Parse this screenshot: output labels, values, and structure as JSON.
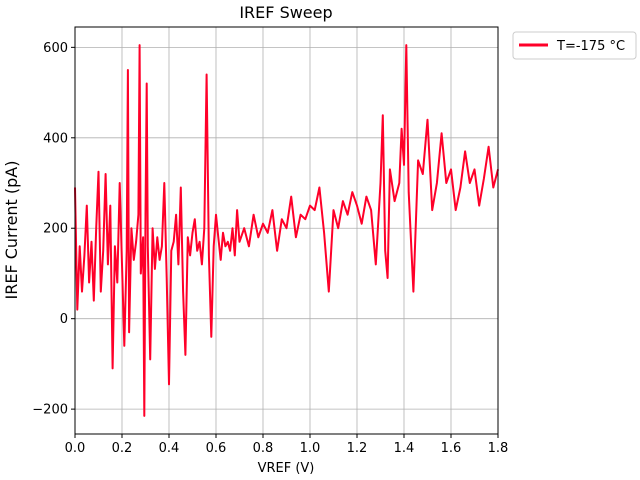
{
  "chart_data": {
    "type": "line",
    "title": "IREF Sweep",
    "xlabel": "VREF (V)",
    "ylabel": "IREF Current (pA)",
    "xlim": [
      0.0,
      1.8
    ],
    "ylim": [
      -255,
      645
    ],
    "xticks": [
      "0.0",
      "0.2",
      "0.4",
      "0.6",
      "0.8",
      "1.0",
      "1.2",
      "1.4",
      "1.6",
      "1.8"
    ],
    "xtick_values": [
      0.0,
      0.2,
      0.4,
      0.6,
      0.8,
      1.0,
      1.2,
      1.4,
      1.6,
      1.8
    ],
    "yticks": [
      "−200",
      "0",
      "200",
      "400",
      "600"
    ],
    "ytick_values": [
      -200,
      0,
      200,
      400,
      600
    ],
    "grid": true,
    "legend_position": "outside-top-right",
    "series": [
      {
        "name": "T=-175 °C",
        "color": "#ff0029",
        "x": [
          0.0,
          0.01,
          0.02,
          0.03,
          0.04,
          0.05,
          0.06,
          0.07,
          0.08,
          0.09,
          0.1,
          0.11,
          0.12,
          0.13,
          0.14,
          0.15,
          0.16,
          0.17,
          0.18,
          0.19,
          0.2,
          0.21,
          0.22,
          0.225,
          0.23,
          0.24,
          0.25,
          0.26,
          0.27,
          0.275,
          0.28,
          0.29,
          0.295,
          0.3,
          0.305,
          0.31,
          0.32,
          0.33,
          0.34,
          0.35,
          0.36,
          0.37,
          0.38,
          0.39,
          0.4,
          0.41,
          0.42,
          0.43,
          0.44,
          0.45,
          0.46,
          0.47,
          0.48,
          0.49,
          0.5,
          0.51,
          0.52,
          0.53,
          0.54,
          0.55,
          0.56,
          0.57,
          0.58,
          0.59,
          0.6,
          0.61,
          0.62,
          0.63,
          0.64,
          0.65,
          0.66,
          0.67,
          0.68,
          0.69,
          0.7,
          0.72,
          0.74,
          0.76,
          0.78,
          0.8,
          0.82,
          0.84,
          0.86,
          0.88,
          0.9,
          0.92,
          0.94,
          0.96,
          0.98,
          1.0,
          1.02,
          1.04,
          1.06,
          1.08,
          1.1,
          1.12,
          1.14,
          1.16,
          1.18,
          1.2,
          1.22,
          1.24,
          1.26,
          1.28,
          1.3,
          1.31,
          1.32,
          1.33,
          1.34,
          1.36,
          1.38,
          1.39,
          1.4,
          1.41,
          1.42,
          1.44,
          1.46,
          1.48,
          1.5,
          1.52,
          1.54,
          1.56,
          1.58,
          1.6,
          1.62,
          1.64,
          1.66,
          1.68,
          1.7,
          1.72,
          1.74,
          1.76,
          1.78,
          1.8
        ],
        "values": [
          290,
          20,
          160,
          60,
          140,
          250,
          80,
          170,
          40,
          200,
          325,
          60,
          150,
          320,
          120,
          250,
          -110,
          160,
          80,
          300,
          120,
          -60,
          150,
          550,
          -30,
          200,
          130,
          170,
          230,
          605,
          100,
          180,
          -215,
          230,
          520,
          160,
          -90,
          200,
          110,
          180,
          130,
          160,
          300,
          90,
          -145,
          150,
          170,
          230,
          120,
          290,
          60,
          -80,
          180,
          140,
          190,
          220,
          150,
          170,
          120,
          200,
          540,
          140,
          -40,
          160,
          230,
          180,
          130,
          190,
          160,
          170,
          150,
          200,
          140,
          240,
          170,
          200,
          160,
          230,
          180,
          210,
          190,
          240,
          150,
          220,
          200,
          270,
          180,
          230,
          220,
          250,
          240,
          290,
          190,
          60,
          240,
          200,
          260,
          230,
          280,
          250,
          210,
          270,
          240,
          120,
          300,
          450,
          150,
          90,
          330,
          260,
          300,
          420,
          340,
          605,
          280,
          60,
          350,
          320,
          440,
          240,
          300,
          410,
          300,
          330,
          240,
          290,
          370,
          300,
          330,
          250,
          310,
          380,
          290,
          330
        ]
      }
    ]
  }
}
